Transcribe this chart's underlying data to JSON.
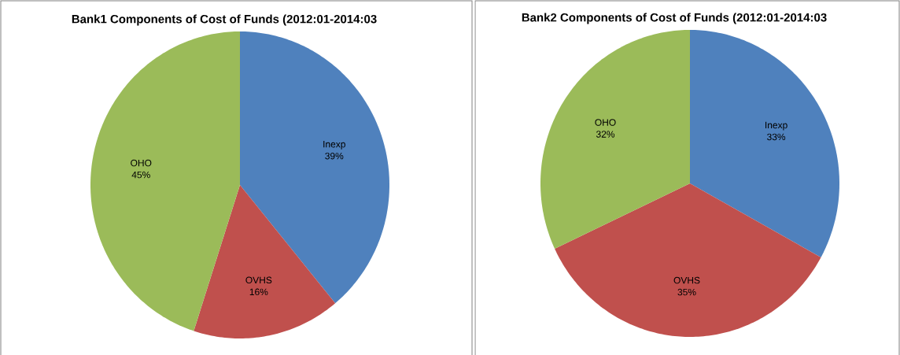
{
  "chart_data": [
    {
      "type": "pie",
      "title": "Bank1 Components of Cost of Funds (2012:01-2014:03",
      "categories": [
        "Inexp",
        "OVHS",
        "OHO"
      ],
      "values": [
        39,
        16,
        45
      ],
      "value_labels": [
        "39%",
        "16%",
        "45%"
      ],
      "colors": [
        "#4f81bd",
        "#c0504d",
        "#9bbb59"
      ]
    },
    {
      "type": "pie",
      "title": "Bank2 Components of Cost of Funds (2012:01-2014:03",
      "categories": [
        "Inexp",
        "OVHS",
        "OHO"
      ],
      "values": [
        33,
        35,
        32
      ],
      "value_labels": [
        "33%",
        "35%",
        "32%"
      ],
      "colors": [
        "#4f81bd",
        "#c0504d",
        "#9bbb59"
      ]
    }
  ]
}
